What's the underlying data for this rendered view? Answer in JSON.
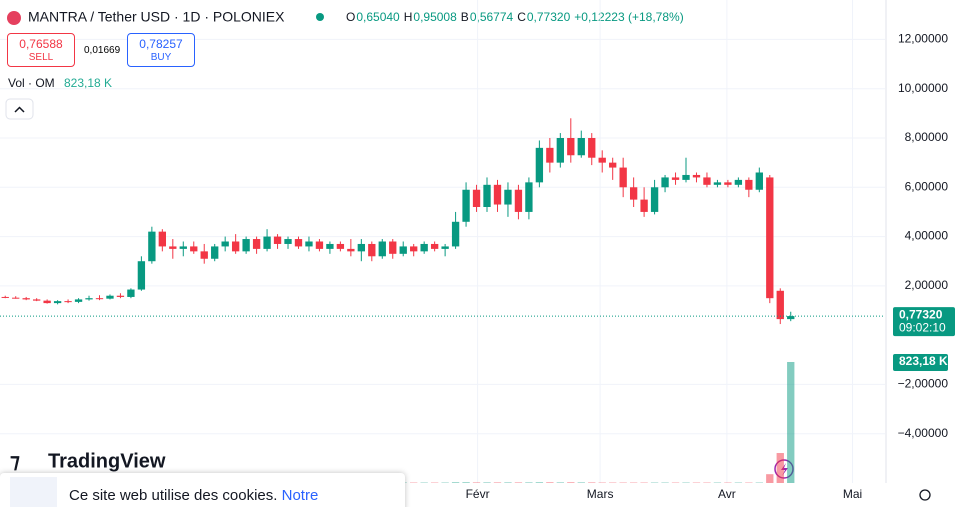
{
  "header": {
    "symbol": "MANTRA / Tether USD · 1D · POLONIEX",
    "ohlc": [
      {
        "key": "O",
        "value": "0,65040"
      },
      {
        "key": "H",
        "value": "0,95008"
      },
      {
        "key": "B",
        "value": "0,56774"
      },
      {
        "key": "C",
        "value": "0,77320"
      }
    ],
    "change": "+0,12223 (+18,78%)",
    "sell_price": "0,76588",
    "sell": "SELL",
    "spread": "0,01669",
    "buy_price": "0,78257",
    "buy": "BUY",
    "volume_label": "Vol · OM",
    "volume_value": "823,18 K"
  },
  "chart_data": {
    "type": "candlestick",
    "open": [
      1.55,
      1.52,
      1.5,
      1.45,
      1.4,
      1.3,
      1.38,
      1.35,
      1.45,
      1.5,
      1.48,
      1.6,
      1.55,
      1.85,
      3.0,
      4.2,
      3.6,
      3.5,
      3.6,
      3.4,
      3.1,
      3.6,
      3.8,
      3.4,
      3.9,
      3.5,
      4.0,
      3.7,
      3.9,
      3.6,
      3.8,
      3.5,
      3.7,
      3.5,
      3.4,
      3.7,
      3.2,
      3.8,
      3.3,
      3.6,
      3.4,
      3.7,
      3.5,
      3.6,
      4.6,
      5.9,
      5.2,
      6.1,
      5.3,
      5.9,
      5.0,
      6.2,
      7.6,
      7.0,
      8.0,
      7.3,
      8.0,
      7.2,
      7.0,
      6.8,
      6.0,
      5.5,
      5.0,
      6.0,
      6.4,
      6.3,
      6.5,
      6.4,
      6.1,
      6.2,
      6.1,
      6.3,
      5.9,
      6.4,
      1.8,
      0.6504
    ],
    "high": [
      1.6,
      1.58,
      1.55,
      1.5,
      1.45,
      1.42,
      1.45,
      1.5,
      1.6,
      1.62,
      1.65,
      1.7,
      1.9,
      3.2,
      4.4,
      4.3,
      3.9,
      3.8,
      3.8,
      3.7,
      3.7,
      4.0,
      4.1,
      4.0,
      4.0,
      4.3,
      4.1,
      4.0,
      4.0,
      4.0,
      3.9,
      3.8,
      3.8,
      3.9,
      3.9,
      3.8,
      3.9,
      3.9,
      3.8,
      3.7,
      3.8,
      3.8,
      3.7,
      5.0,
      6.2,
      6.1,
      6.4,
      6.3,
      6.2,
      6.1,
      6.4,
      7.9,
      8.0,
      8.2,
      8.8,
      8.3,
      8.2,
      7.5,
      7.2,
      7.2,
      6.4,
      6.0,
      6.3,
      6.5,
      6.6,
      7.2,
      6.6,
      6.6,
      6.3,
      6.3,
      6.4,
      6.4,
      6.8,
      6.5,
      1.9,
      0.95008
    ],
    "low": [
      1.5,
      1.48,
      1.42,
      1.38,
      1.28,
      1.25,
      1.3,
      1.3,
      1.4,
      1.42,
      1.45,
      1.5,
      1.5,
      1.8,
      2.9,
      3.4,
      3.1,
      3.2,
      3.3,
      2.9,
      3.0,
      3.4,
      3.3,
      3.3,
      3.3,
      3.4,
      3.5,
      3.5,
      3.5,
      3.4,
      3.4,
      3.3,
      3.4,
      3.2,
      3.0,
      3.0,
      3.1,
      3.1,
      3.2,
      3.2,
      3.3,
      3.4,
      3.2,
      3.5,
      4.4,
      5.0,
      5.0,
      5.0,
      4.8,
      4.7,
      4.7,
      6.0,
      6.6,
      6.8,
      7.0,
      7.2,
      6.9,
      6.6,
      6.3,
      5.6,
      5.2,
      4.8,
      4.9,
      5.8,
      6.1,
      6.2,
      6.2,
      6.0,
      6.0,
      6.0,
      6.0,
      5.6,
      5.8,
      1.3,
      0.45,
      0.56774
    ],
    "close": [
      1.52,
      1.5,
      1.45,
      1.4,
      1.3,
      1.38,
      1.35,
      1.45,
      1.5,
      1.48,
      1.6,
      1.55,
      1.85,
      3.0,
      4.2,
      3.6,
      3.5,
      3.6,
      3.4,
      3.1,
      3.6,
      3.8,
      3.4,
      3.9,
      3.5,
      4.0,
      3.7,
      3.9,
      3.6,
      3.8,
      3.5,
      3.7,
      3.5,
      3.4,
      3.7,
      3.2,
      3.8,
      3.3,
      3.6,
      3.4,
      3.7,
      3.5,
      3.6,
      4.6,
      5.9,
      5.2,
      6.1,
      5.3,
      5.9,
      5.0,
      6.2,
      7.6,
      7.0,
      8.0,
      7.3,
      8.0,
      7.2,
      7.0,
      6.8,
      6.0,
      5.5,
      5.0,
      6.0,
      6.4,
      6.3,
      6.5,
      6.4,
      6.1,
      6.2,
      6.1,
      6.3,
      5.9,
      6.6,
      1.5,
      0.65,
      0.7732
    ],
    "volume": [
      3,
      3,
      3,
      3,
      3,
      3,
      3,
      3,
      3,
      3,
      3,
      3,
      4,
      6,
      6,
      4,
      3,
      3,
      3,
      3,
      3,
      3,
      3,
      3,
      3,
      3,
      3,
      3,
      3,
      3,
      3,
      3,
      3,
      3,
      3,
      3,
      3,
      3,
      3,
      3,
      3,
      3,
      3,
      5,
      5,
      4,
      4,
      4,
      4,
      4,
      4,
      5,
      5,
      4,
      5,
      4,
      4,
      3,
      3,
      3,
      3,
      3,
      3,
      3,
      3,
      3,
      3,
      3,
      3,
      3,
      3,
      3,
      3,
      60,
      204,
      823.18
    ],
    "volume_lim": [
      0,
      1000
    ],
    "up_color": "#089981",
    "down_color": "#f23645",
    "xlim": [
      -0.5,
      84
    ],
    "xticks": [
      {
        "value": 45.1,
        "label": "Févr"
      },
      {
        "value": 56.8,
        "label": "Mars"
      },
      {
        "value": 68.9,
        "label": "Avr"
      },
      {
        "value": 80.9,
        "label": "Mai"
      }
    ],
    "ylim": [
      -6,
      13.6
    ],
    "yticks": [
      {
        "value": 12,
        "label": "12,00000"
      },
      {
        "value": 10,
        "label": "10,00000"
      },
      {
        "value": 8,
        "label": "8,00000"
      },
      {
        "value": 6,
        "label": "6,00000"
      },
      {
        "value": 4,
        "label": "4,00000"
      },
      {
        "value": 2,
        "label": "2,00000"
      },
      {
        "value": -2,
        "label": "−2,00000"
      },
      {
        "value": -4,
        "label": "−4,00000"
      }
    ],
    "grid": true,
    "last_price_label": "0,77320",
    "countdown": "09:02:10",
    "last_volume_label": "823,18 K"
  },
  "footer": {
    "brand": "TradingView",
    "cookie_text": "Ce site web utilise des cookies.",
    "cookie_link": "Notre"
  }
}
